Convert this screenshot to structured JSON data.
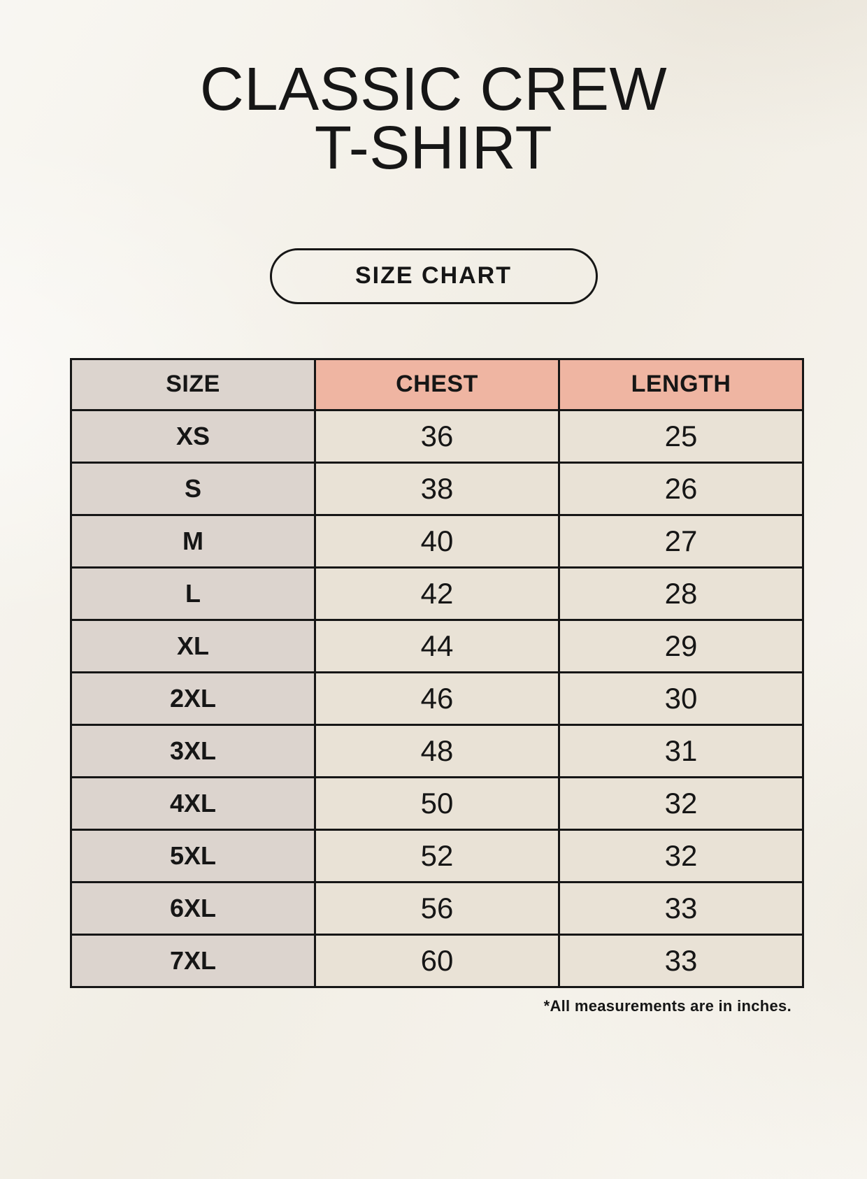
{
  "header": {
    "title_line1": "CLASSIC CREW",
    "title_line2": "T-SHIRT",
    "button_label": "SIZE CHART"
  },
  "footer": {
    "note": "*All measurements are in inches."
  },
  "colors": {
    "page_background": "#f4f1e9",
    "accent_header_fill": "#efb5a2",
    "size_column_fill": "#dcd4ce",
    "cell_fill": "#e9e2d6",
    "border": "#161616",
    "text": "#161616"
  },
  "chart_data": {
    "type": "table",
    "title": "CLASSIC CREW T-SHIRT SIZE CHART",
    "columns": [
      "SIZE",
      "CHEST",
      "LENGTH"
    ],
    "rows": [
      [
        "XS",
        36,
        25
      ],
      [
        "S",
        38,
        26
      ],
      [
        "M",
        40,
        27
      ],
      [
        "L",
        42,
        28
      ],
      [
        "XL",
        44,
        29
      ],
      [
        "2XL",
        46,
        30
      ],
      [
        "3XL",
        48,
        31
      ],
      [
        "4XL",
        50,
        32
      ],
      [
        "5XL",
        52,
        32
      ],
      [
        "6XL",
        56,
        33
      ],
      [
        "7XL",
        60,
        33
      ]
    ],
    "units_note": "*All measurements are in inches."
  }
}
